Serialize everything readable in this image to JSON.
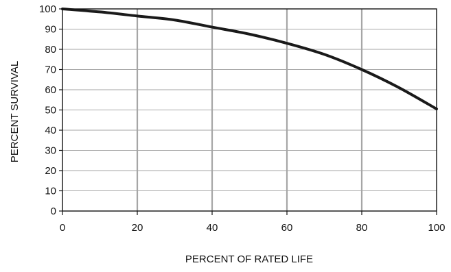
{
  "chart_data": {
    "type": "line",
    "title": "",
    "xlabel": "PERCENT OF RATED LIFE",
    "ylabel": "PERCENT  SURVIVAL",
    "xlim": [
      0,
      100
    ],
    "ylim": [
      0,
      100
    ],
    "x_ticks": [
      0,
      20,
      40,
      60,
      80,
      100
    ],
    "y_ticks": [
      0,
      10,
      20,
      30,
      40,
      50,
      60,
      70,
      80,
      90,
      100
    ],
    "grid": {
      "vertical": true,
      "horizontal": true
    },
    "legend": "none",
    "series": [
      {
        "x": [
          0,
          10,
          20,
          30,
          40,
          50,
          60,
          70,
          80,
          90,
          100
        ],
        "y": [
          100,
          98.5,
          96.5,
          94.5,
          91,
          87.5,
          83,
          77.5,
          70,
          61,
          50.5
        ],
        "color": "#1a1a1a"
      }
    ]
  }
}
